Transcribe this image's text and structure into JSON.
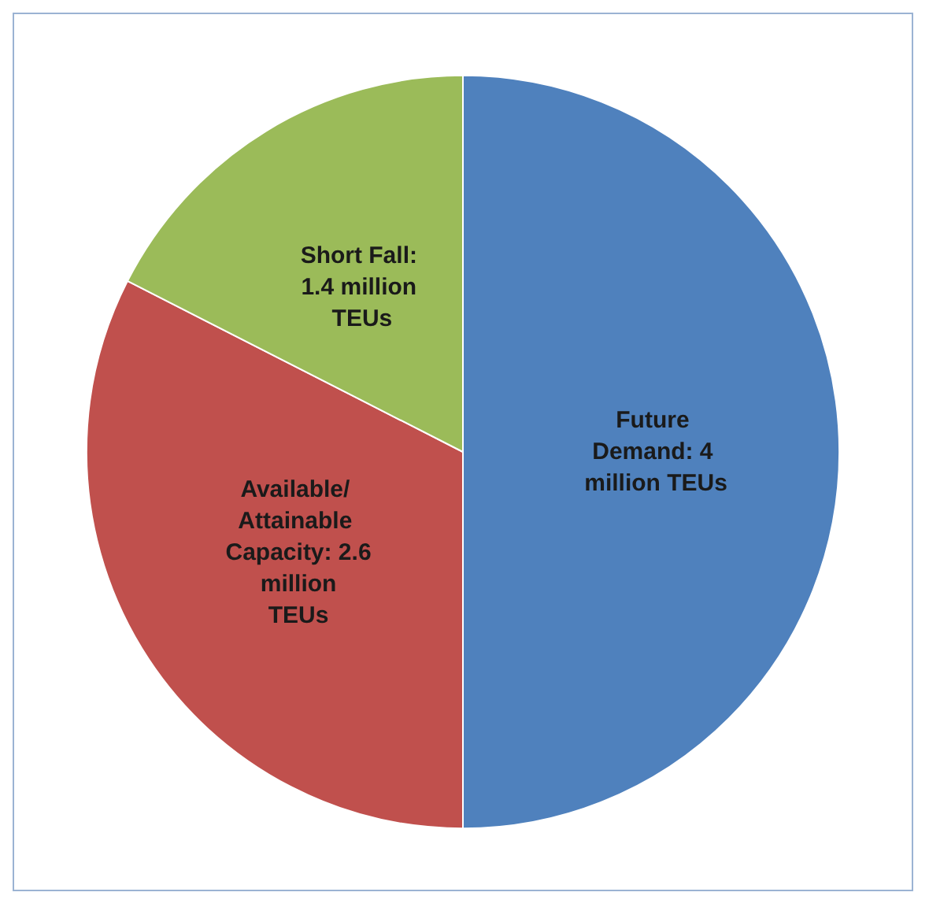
{
  "chart_data": {
    "type": "pie",
    "categories": [
      "Future Demand",
      "Available/ Attainable Capacity",
      "Short Fall"
    ],
    "values": [
      4,
      2.6,
      1.4
    ],
    "value_labels": [
      ": 4 million TEUs",
      ": 2.6 million TEUs",
      ": 1.4 million TEUs"
    ],
    "colors": [
      "#4f81bd",
      "#c0504d",
      "#9bbb59"
    ],
    "legend": false
  }
}
